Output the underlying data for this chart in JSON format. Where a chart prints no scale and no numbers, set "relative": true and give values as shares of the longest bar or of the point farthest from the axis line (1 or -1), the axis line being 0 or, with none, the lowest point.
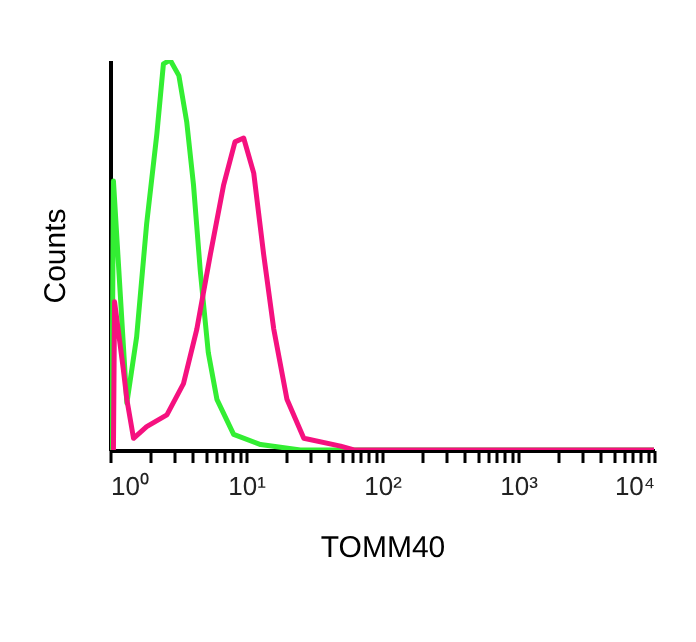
{
  "chart_data": {
    "type": "line",
    "xlabel": "TOMM40",
    "ylabel": "Counts",
    "relative": true,
    "log": "x",
    "xlim": [
      1,
      10000
    ],
    "xticks": [
      {
        "value": 1,
        "label": "10⁰"
      },
      {
        "value": 2,
        "label": null
      },
      {
        "value": 3,
        "label": null
      },
      {
        "value": 4,
        "label": null
      },
      {
        "value": 5,
        "label": null
      },
      {
        "value": 6,
        "label": null
      },
      {
        "value": 7,
        "label": null
      },
      {
        "value": 8,
        "label": null
      },
      {
        "value": 9,
        "label": null
      },
      {
        "value": 10,
        "label": "10¹"
      },
      {
        "value": 20,
        "label": null
      },
      {
        "value": 30,
        "label": null
      },
      {
        "value": 40,
        "label": null
      },
      {
        "value": 50,
        "label": null
      },
      {
        "value": 60,
        "label": null
      },
      {
        "value": 70,
        "label": null
      },
      {
        "value": 80,
        "label": null
      },
      {
        "value": 90,
        "label": null
      },
      {
        "value": 100,
        "label": "10²"
      },
      {
        "value": 200,
        "label": null
      },
      {
        "value": 300,
        "label": null
      },
      {
        "value": 400,
        "label": null
      },
      {
        "value": 500,
        "label": null
      },
      {
        "value": 600,
        "label": null
      },
      {
        "value": 700,
        "label": null
      },
      {
        "value": 800,
        "label": null
      },
      {
        "value": 900,
        "label": null
      },
      {
        "value": 1000,
        "label": "10³"
      },
      {
        "value": 2000,
        "label": null
      },
      {
        "value": 3000,
        "label": null
      },
      {
        "value": 4000,
        "label": null
      },
      {
        "value": 5000,
        "label": null
      },
      {
        "value": 6000,
        "label": null
      },
      {
        "value": 7000,
        "label": null
      },
      {
        "value": 8000,
        "label": null
      },
      {
        "value": 9000,
        "label": null
      },
      {
        "value": 10000,
        "label": "10⁴"
      }
    ],
    "grid": false,
    "legend": false,
    "marker": "none",
    "line_style": "solid",
    "series": [
      {
        "color": "#33ee33",
        "x": [
          1.03,
          1.06,
          1.33,
          1.57,
          1.86,
          2.21,
          2.47,
          2.77,
          3.21,
          3.67,
          4.11,
          4.61,
          5.28,
          6.11,
          8.11,
          12.8,
          25.1,
          10000
        ],
        "values": [
          0,
          0.69,
          0.12,
          0.29,
          0.58,
          0.81,
          0.99,
          1,
          0.96,
          0.84,
          0.68,
          0.46,
          0.25,
          0.13,
          0.04,
          0.014,
          0,
          0
        ]
      },
      {
        "color": "#f5117f",
        "x": [
          1.06,
          1.08,
          1.25,
          1.33,
          1.49,
          1.86,
          2.62,
          3.47,
          4.35,
          5.46,
          6.85,
          8.3,
          9.61,
          11.4,
          13.5,
          16,
          20,
          26.6,
          49.6,
          62.2,
          10000
        ],
        "values": [
          0,
          0.38,
          0.21,
          0.13,
          0.03,
          0.06,
          0.09,
          0.17,
          0.31,
          0.5,
          0.68,
          0.79,
          0.8,
          0.71,
          0.5,
          0.31,
          0.13,
          0.03,
          0.01,
          0,
          0
        ]
      }
    ]
  }
}
